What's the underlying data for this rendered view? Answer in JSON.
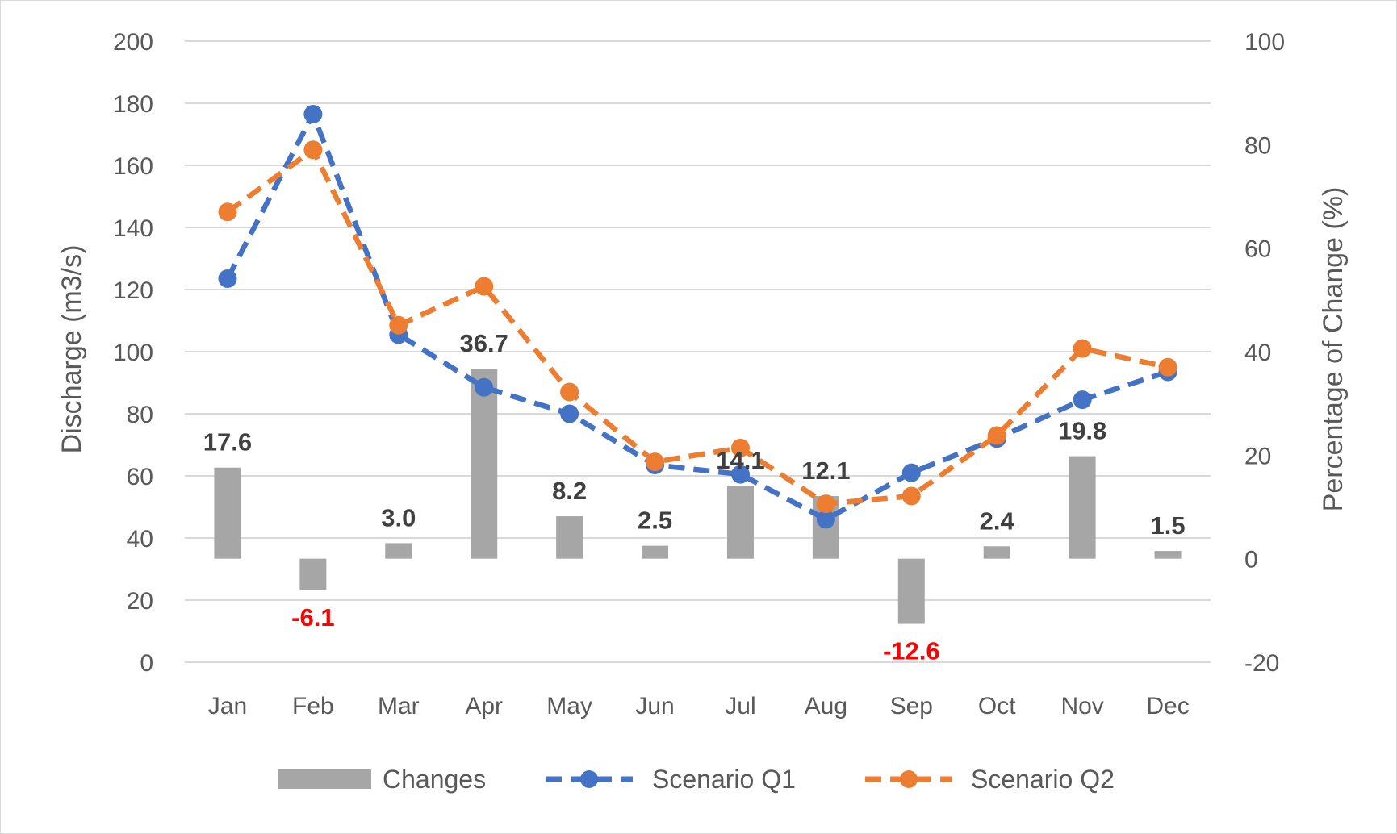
{
  "chart_data": {
    "type": "bar+line",
    "categories": [
      "Jan",
      "Feb",
      "Mar",
      "Apr",
      "May",
      "Jun",
      "Jul",
      "Aug",
      "Sep",
      "Oct",
      "Nov",
      "Dec"
    ],
    "ylabel": "Discharge (m3/s)",
    "y2label": "Percentage of Change (%)",
    "ylim": [
      0,
      200
    ],
    "yticks": [
      "0",
      "20",
      "40",
      "60",
      "80",
      "100",
      "120",
      "140",
      "160",
      "180",
      "200"
    ],
    "y2lim": [
      -20,
      100
    ],
    "y2ticks": [
      "-20",
      "0",
      "20",
      "40",
      "60",
      "80",
      "100"
    ],
    "grid": "horizontal",
    "legend_position": "bottom",
    "bars": {
      "name": "Changes",
      "axis": "secondary",
      "color": "#a6a6a6",
      "values": [
        17.6,
        -6.1,
        3.0,
        36.7,
        8.2,
        2.5,
        14.1,
        12.1,
        -12.6,
        2.4,
        19.8,
        1.5
      ],
      "labels": [
        "17.6",
        "-6.1",
        "3.0",
        "36.7",
        "8.2",
        "2.5",
        "14.1",
        "12.1",
        "-12.6",
        "2.4",
        "19.8",
        "1.5"
      ],
      "label_color": "#404040",
      "negative_label_color": "#ff0000"
    },
    "series": [
      {
        "name": "Scenario Q1",
        "axis": "primary",
        "color": "#4472c4",
        "values": [
          123.5,
          176.5,
          105.5,
          88.5,
          80,
          63.5,
          60.5,
          46,
          61,
          72,
          84.5,
          93.5
        ]
      },
      {
        "name": "Scenario Q2",
        "axis": "primary",
        "color": "#ed7d31",
        "values": [
          145,
          165,
          108.5,
          121,
          87,
          64.5,
          69,
          51,
          53.5,
          73,
          101,
          95
        ]
      }
    ]
  }
}
